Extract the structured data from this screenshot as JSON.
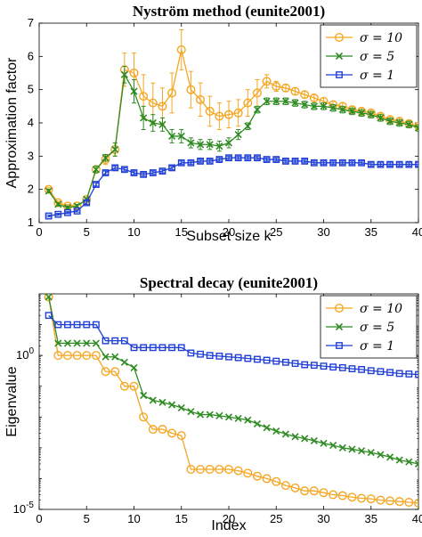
{
  "chart_data": [
    {
      "type": "line",
      "title": "Nyström method (eunite2001)",
      "xlabel": "Subset size k",
      "ylabel": "Approximation factor",
      "xlim": [
        0,
        40
      ],
      "ylim": [
        1,
        7
      ],
      "xticks": [
        0,
        5,
        10,
        15,
        20,
        25,
        30,
        35,
        40
      ],
      "yticks": [
        1,
        2,
        3,
        4,
        5,
        6,
        7
      ],
      "legend_position": "top-right",
      "x": [
        1,
        2,
        3,
        4,
        5,
        6,
        7,
        8,
        9,
        10,
        11,
        12,
        13,
        14,
        15,
        16,
        17,
        18,
        19,
        20,
        21,
        22,
        23,
        24,
        25,
        26,
        27,
        28,
        29,
        30,
        31,
        32,
        33,
        34,
        35,
        36,
        37,
        38,
        39,
        40
      ],
      "series": [
        {
          "name": "σ = 10",
          "color": "#f5a623",
          "marker": "circle",
          "values": [
            2.0,
            1.6,
            1.5,
            1.5,
            1.7,
            2.6,
            2.9,
            3.2,
            5.6,
            5.5,
            4.8,
            4.6,
            4.5,
            4.9,
            6.2,
            5.0,
            4.7,
            4.35,
            4.2,
            4.25,
            4.3,
            4.6,
            4.9,
            5.25,
            5.1,
            5.05,
            4.95,
            4.85,
            4.75,
            4.65,
            4.55,
            4.5,
            4.4,
            4.35,
            4.3,
            4.2,
            4.1,
            4.05,
            3.98,
            3.9
          ],
          "errors": [
            0.05,
            0.05,
            0.05,
            0.05,
            0.05,
            0.1,
            0.15,
            0.2,
            0.5,
            0.6,
            0.65,
            0.6,
            0.55,
            0.6,
            0.6,
            0.55,
            0.5,
            0.45,
            0.4,
            0.4,
            0.4,
            0.4,
            0.4,
            0.2,
            0.15,
            0.1,
            0.1,
            0.1,
            0.1,
            0.1,
            0.1,
            0.1,
            0.1,
            0.1,
            0.1,
            0.1,
            0.1,
            0.1,
            0.1,
            0.1
          ]
        },
        {
          "name": "σ = 5",
          "color": "#2e8b22",
          "marker": "x",
          "values": [
            1.95,
            1.55,
            1.45,
            1.5,
            1.7,
            2.6,
            2.95,
            3.2,
            5.45,
            4.95,
            4.15,
            4.0,
            3.95,
            3.6,
            3.6,
            3.4,
            3.35,
            3.35,
            3.3,
            3.4,
            3.65,
            3.9,
            4.4,
            4.65,
            4.65,
            4.65,
            4.6,
            4.55,
            4.5,
            4.5,
            4.45,
            4.4,
            4.35,
            4.3,
            4.25,
            4.15,
            4.05,
            4.0,
            3.95,
            3.85
          ],
          "errors": [
            0.05,
            0.05,
            0.05,
            0.05,
            0.05,
            0.1,
            0.1,
            0.2,
            0.25,
            0.35,
            0.35,
            0.25,
            0.2,
            0.2,
            0.2,
            0.15,
            0.15,
            0.15,
            0.15,
            0.15,
            0.15,
            0.1,
            0.1,
            0.1,
            0.1,
            0.1,
            0.1,
            0.1,
            0.1,
            0.1,
            0.1,
            0.1,
            0.1,
            0.1,
            0.1,
            0.1,
            0.1,
            0.1,
            0.1,
            0.1
          ]
        },
        {
          "name": "σ = 1",
          "color": "#1f3fd6",
          "marker": "square",
          "values": [
            1.2,
            1.25,
            1.3,
            1.35,
            1.6,
            2.15,
            2.5,
            2.65,
            2.6,
            2.5,
            2.45,
            2.5,
            2.55,
            2.65,
            2.8,
            2.8,
            2.85,
            2.85,
            2.9,
            2.95,
            2.95,
            2.95,
            2.95,
            2.9,
            2.9,
            2.85,
            2.85,
            2.85,
            2.8,
            2.8,
            2.8,
            2.8,
            2.8,
            2.8,
            2.75,
            2.75,
            2.75,
            2.75,
            2.75,
            2.75
          ],
          "errors": [
            0.03,
            0.03,
            0.03,
            0.03,
            0.05,
            0.05,
            0.05,
            0.05,
            0.05,
            0.05,
            0.05,
            0.05,
            0.05,
            0.05,
            0.05,
            0.05,
            0.05,
            0.05,
            0.05,
            0.05,
            0.05,
            0.05,
            0.05,
            0.05,
            0.05,
            0.05,
            0.05,
            0.05,
            0.05,
            0.05,
            0.05,
            0.05,
            0.05,
            0.05,
            0.05,
            0.05,
            0.05,
            0.05,
            0.05,
            0.05
          ]
        }
      ]
    },
    {
      "type": "line",
      "title": "Spectral decay (eunite2001)",
      "xlabel": "Index",
      "ylabel": "Eigenvalue",
      "xlim": [
        0,
        40
      ],
      "ylim": [
        1e-05,
        100
      ],
      "log_scale_y": true,
      "xticks": [
        0,
        5,
        10,
        15,
        20,
        25,
        30,
        35,
        40
      ],
      "yticks": [
        {
          "value": 1,
          "label": "10",
          "exp": "0"
        },
        {
          "value": 1e-05,
          "label": "10",
          "exp": "-5"
        }
      ],
      "legend_position": "top-right",
      "x": [
        1,
        2,
        3,
        4,
        5,
        6,
        7,
        8,
        9,
        10,
        11,
        12,
        13,
        14,
        15,
        16,
        17,
        18,
        19,
        20,
        21,
        22,
        23,
        24,
        25,
        26,
        27,
        28,
        29,
        30,
        31,
        32,
        33,
        34,
        35,
        36,
        37,
        38,
        39,
        40
      ],
      "series": [
        {
          "name": "σ = 10",
          "color": "#f5a623",
          "marker": "circle",
          "values": [
            80,
            1.0,
            1.0,
            1.0,
            1.0,
            1.0,
            0.3,
            0.3,
            0.1,
            0.1,
            0.01,
            0.004,
            0.004,
            0.003,
            0.0025,
            0.0002,
            0.0002,
            0.0002,
            0.0002,
            0.0002,
            0.00018,
            0.00015,
            0.00012,
            0.0001,
            8e-05,
            6e-05,
            5e-05,
            4e-05,
            4e-05,
            3.5e-05,
            3e-05,
            2.8e-05,
            2.5e-05,
            2.3e-05,
            2.2e-05,
            2e-05,
            1.9e-05,
            1.8e-05,
            1.7e-05,
            1.6e-05
          ]
        },
        {
          "name": "σ = 5",
          "color": "#2e8b22",
          "marker": "x",
          "values": [
            80,
            2.5,
            2.5,
            2.5,
            2.5,
            2.5,
            0.9,
            0.9,
            0.6,
            0.4,
            0.05,
            0.035,
            0.03,
            0.025,
            0.02,
            0.015,
            0.012,
            0.012,
            0.011,
            0.01,
            0.009,
            0.008,
            0.006,
            0.0045,
            0.0035,
            0.0028,
            0.0023,
            0.002,
            0.0017,
            0.0014,
            0.0012,
            0.001,
            0.0009,
            0.0008,
            0.0007,
            0.0006,
            0.0005,
            0.0004,
            0.00035,
            0.0003
          ]
        },
        {
          "name": "σ = 1",
          "color": "#1f3fd6",
          "marker": "square",
          "values": [
            20,
            10,
            10,
            10,
            10,
            10,
            3.0,
            3.0,
            3.0,
            1.8,
            1.8,
            1.8,
            1.8,
            1.8,
            1.8,
            1.2,
            1.1,
            1.0,
            0.95,
            0.9,
            0.85,
            0.8,
            0.75,
            0.7,
            0.65,
            0.6,
            0.55,
            0.5,
            0.48,
            0.45,
            0.42,
            0.4,
            0.37,
            0.35,
            0.32,
            0.3,
            0.28,
            0.26,
            0.25,
            0.24
          ]
        }
      ]
    }
  ]
}
